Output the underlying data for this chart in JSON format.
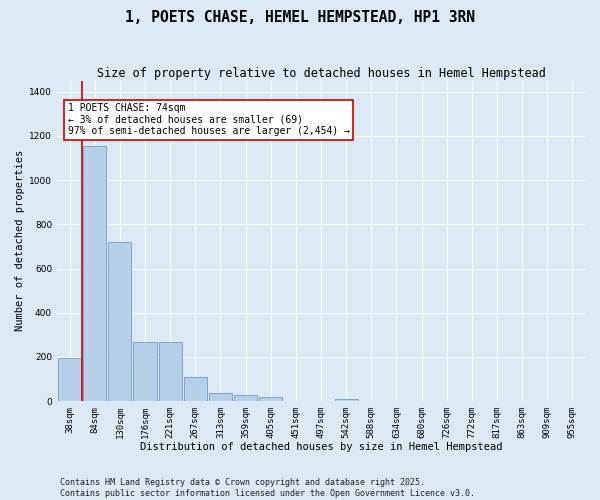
{
  "title": "1, POETS CHASE, HEMEL HEMPSTEAD, HP1 3RN",
  "subtitle": "Size of property relative to detached houses in Hemel Hempstead",
  "xlabel": "Distribution of detached houses by size in Hemel Hempstead",
  "ylabel": "Number of detached properties",
  "bin_labels": [
    "38sqm",
    "84sqm",
    "130sqm",
    "176sqm",
    "221sqm",
    "267sqm",
    "313sqm",
    "359sqm",
    "405sqm",
    "451sqm",
    "497sqm",
    "542sqm",
    "588sqm",
    "634sqm",
    "680sqm",
    "726sqm",
    "772sqm",
    "817sqm",
    "863sqm",
    "909sqm",
    "955sqm"
  ],
  "bar_heights": [
    195,
    1155,
    720,
    270,
    270,
    110,
    35,
    30,
    18,
    0,
    0,
    12,
    0,
    0,
    0,
    0,
    0,
    0,
    0,
    0,
    0
  ],
  "bar_color": "#b8cfe8",
  "bar_edge_color": "#6090c0",
  "background_color": "#dde8f5",
  "plot_background": "#dde8f5",
  "vline_color": "#cc0000",
  "vline_x_index": 0,
  "ylim": [
    0,
    1450
  ],
  "yticks": [
    0,
    200,
    400,
    600,
    800,
    1000,
    1200,
    1400
  ],
  "annotation_text": "1 POETS CHASE: 74sqm\n← 3% of detached houses are smaller (69)\n97% of semi-detached houses are larger (2,454) →",
  "annotation_box_color": "#ffffff",
  "annotation_border_color": "#cc0000",
  "footer_text": "Contains HM Land Registry data © Crown copyright and database right 2025.\nContains public sector information licensed under the Open Government Licence v3.0.",
  "title_fontsize": 10.5,
  "subtitle_fontsize": 8.5,
  "label_fontsize": 7.5,
  "tick_fontsize": 6.5,
  "annotation_fontsize": 7,
  "footer_fontsize": 6
}
